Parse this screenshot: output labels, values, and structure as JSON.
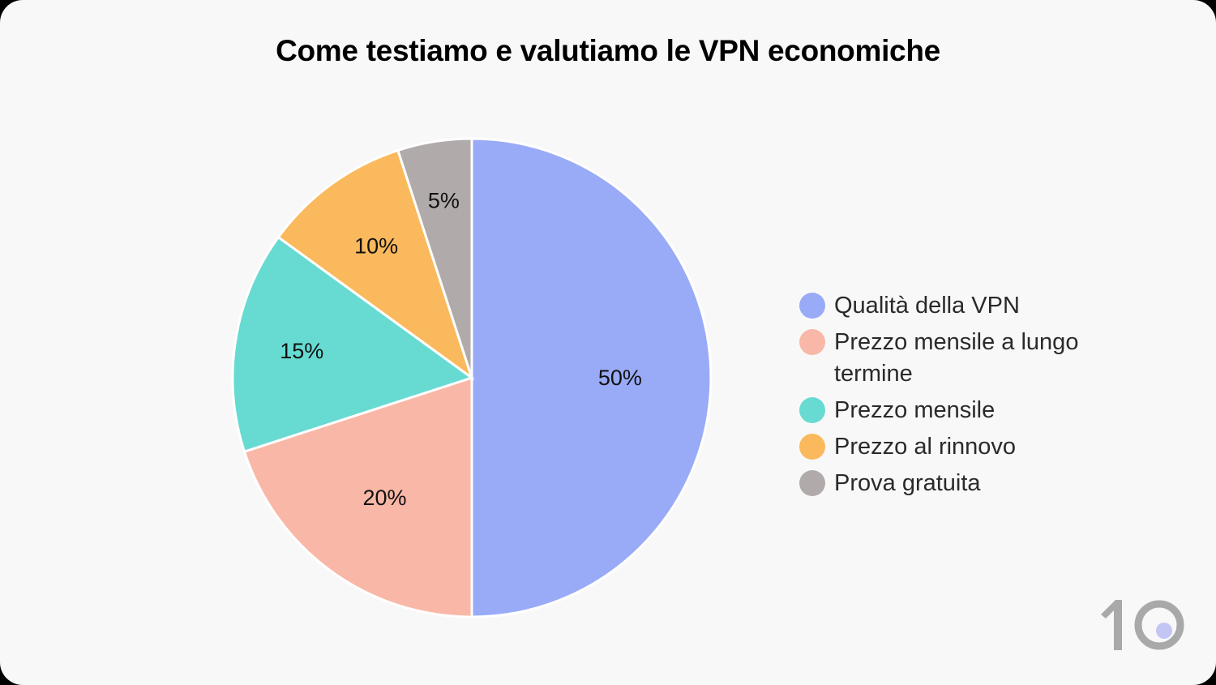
{
  "title": "Come testiamo e valutiamo le VPN economiche",
  "chart_data": {
    "type": "pie",
    "title": "Come testiamo e valutiamo le VPN economiche",
    "categories": [
      "Qualità della VPN",
      "Prezzo mensile a lungo termine",
      "Prezzo mensile",
      "Prezzo al rinnovo",
      "Prova gratuita"
    ],
    "values": [
      50,
      20,
      15,
      10,
      5
    ],
    "labels": [
      "50%",
      "20%",
      "15%",
      "10%",
      "5%"
    ],
    "colors": [
      "#99abf7",
      "#f9b8a7",
      "#67dbd2",
      "#fab95c",
      "#b0abaa"
    ],
    "legend_position": "right"
  },
  "legend": {
    "items": [
      {
        "label": "Qualità della VPN",
        "color": "#99abf7"
      },
      {
        "label": "Prezzo mensile a lungo termine",
        "color": "#f9b8a7"
      },
      {
        "label": "Prezzo mensile",
        "color": "#67dbd2"
      },
      {
        "label": "Prezzo al rinnovo",
        "color": "#fab95c"
      },
      {
        "label": "Prova gratuita",
        "color": "#b0abaa"
      }
    ]
  },
  "logo": {
    "text": "10",
    "dot_color": "#c3c6f5",
    "color": "#a9a9a9"
  }
}
